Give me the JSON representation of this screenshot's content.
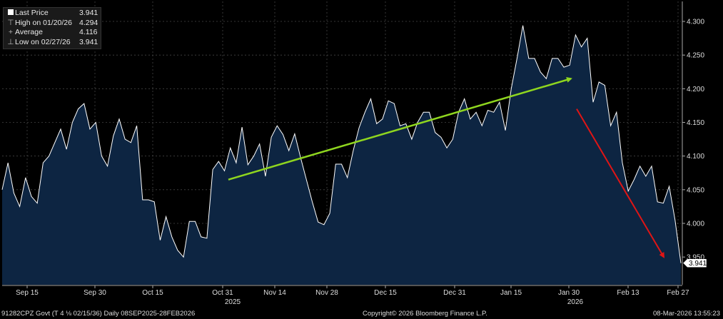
{
  "legend": {
    "last_label": "Last Price",
    "last_value": "3.941",
    "high_label": "High on 01/20/26",
    "high_value": "4.294",
    "avg_label": "Average",
    "avg_value": "4.116",
    "low_label": "Low on 02/27/26",
    "low_value": "3.941"
  },
  "footer": {
    "ticker": "91282CPZ Govt (T 4 ⅛ 02/15/36) Daily 08SEP2025-28FEB2026",
    "copyright": "Copyright© 2026 Bloomberg Finance L.P.",
    "timestamp": "08-Mar-2026 13:55:23"
  },
  "colors": {
    "area": "#0d2542",
    "line": "#ffffff",
    "up_arrow": "#8fd61f",
    "down_arrow": "#e01515",
    "grid": "#444444"
  },
  "chart_data": {
    "type": "area",
    "title": "",
    "ylim": [
      3.915,
      4.32
    ],
    "y_ticks": [
      "4.300",
      "4.250",
      "4.200",
      "4.150",
      "4.100",
      "4.050",
      "4.000",
      "3.950"
    ],
    "y_tick_values": [
      4.3,
      4.25,
      4.2,
      4.15,
      4.1,
      4.05,
      4.0,
      3.95
    ],
    "x_ticks": [
      "Sep 15",
      "Sep 30",
      "Oct 15",
      "Oct 31",
      "Nov 14",
      "Nov 28",
      "Dec 15",
      "Dec 31",
      "Jan 15",
      "Jan 30",
      "Feb 13",
      "Feb 27"
    ],
    "year_labels": [
      "2025",
      "2026"
    ],
    "last_value_label": "3.941",
    "grid": true,
    "legend_position": "top-left",
    "annotations": [
      {
        "type": "arrow",
        "color": "green",
        "from": 4.065,
        "to": 4.215,
        "direction": "up"
      },
      {
        "type": "arrow",
        "color": "red",
        "from": 4.17,
        "to": 3.95,
        "direction": "down"
      }
    ],
    "series": [
      {
        "values": [
          4.05,
          4.09,
          4.045,
          4.025,
          4.068,
          4.04,
          4.03,
          4.09,
          4.1,
          4.12,
          4.14,
          4.11,
          4.15,
          4.17,
          4.178,
          4.14,
          4.15,
          4.1,
          4.085,
          4.13,
          4.155,
          4.125,
          4.12,
          4.145,
          4.035,
          4.035,
          4.032,
          3.975,
          4.01,
          3.98,
          3.96,
          3.95,
          4.003,
          4.003,
          3.98,
          3.978,
          4.08,
          4.092,
          4.078,
          4.112,
          4.09,
          4.143,
          4.087,
          4.1,
          4.118,
          4.07,
          4.128,
          4.145,
          4.132,
          4.108,
          4.133,
          4.098,
          4.065,
          4.032,
          4.002,
          3.998,
          4.015,
          4.088,
          4.088,
          4.068,
          4.108,
          4.142,
          4.165,
          4.185,
          4.148,
          4.155,
          4.182,
          4.178,
          4.145,
          4.148,
          4.125,
          4.15,
          4.165,
          4.165,
          4.135,
          4.128,
          4.112,
          4.125,
          4.165,
          4.185,
          4.155,
          4.165,
          4.145,
          4.168,
          4.165,
          4.18,
          4.138,
          4.2,
          4.245,
          4.294,
          4.245,
          4.245,
          4.225,
          4.215,
          4.245,
          4.245,
          4.232,
          4.235,
          4.28,
          4.262,
          4.275,
          4.18,
          4.21,
          4.205,
          4.145,
          4.165,
          4.09,
          4.048,
          4.065,
          4.085,
          4.07,
          4.085,
          4.032,
          4.03,
          4.055,
          4.005,
          3.941
        ]
      }
    ]
  }
}
